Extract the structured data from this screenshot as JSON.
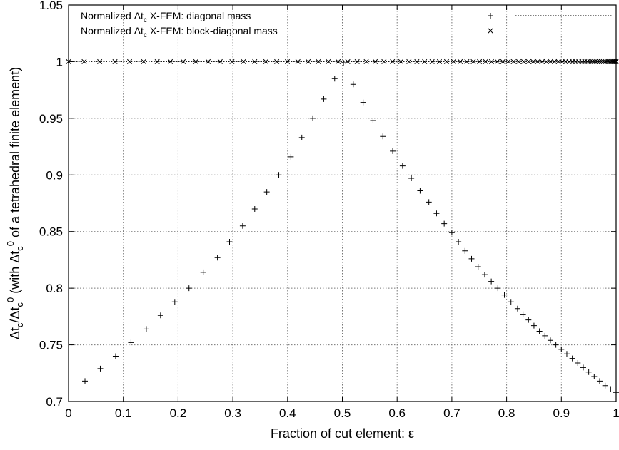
{
  "chart_data": {
    "type": "scatter",
    "title": "",
    "xlabel": "Fraction of cut element: ε",
    "ylabel": "Δt_c/Δt_c^0 (with Δt_c^0 of a tetrahedral finite element)",
    "xlim": [
      0,
      1
    ],
    "ylim": [
      0.7,
      1.05
    ],
    "grid": true,
    "legend_position": "top",
    "xticks": [
      "0",
      "0.1",
      "0.2",
      "0.3",
      "0.4",
      "0.5",
      "0.6",
      "0.7",
      "0.8",
      "0.9",
      "1"
    ],
    "yticks": [
      "0.7",
      "0.75",
      "0.8",
      "0.85",
      "0.9",
      "0.95",
      "1",
      "1.05"
    ],
    "series": [
      {
        "name": "Normalized Δt_c X-FEM: diagonal mass",
        "marker": "plus",
        "color": "#000000",
        "x": [
          0.03,
          0.058,
          0.086,
          0.114,
          0.142,
          0.168,
          0.194,
          0.22,
          0.246,
          0.272,
          0.294,
          0.318,
          0.34,
          0.362,
          0.384,
          0.406,
          0.426,
          0.446,
          0.466,
          0.486,
          0.502,
          0.52,
          0.538,
          0.556,
          0.574,
          0.592,
          0.61,
          0.626,
          0.642,
          0.658,
          0.672,
          0.686,
          0.7,
          0.712,
          0.724,
          0.736,
          0.748,
          0.76,
          0.772,
          0.784,
          0.796,
          0.808,
          0.82,
          0.83,
          0.84,
          0.85,
          0.86,
          0.87,
          0.88,
          0.89,
          0.9,
          0.91,
          0.92,
          0.93,
          0.94,
          0.95,
          0.96,
          0.97,
          0.98,
          0.99,
          1.0
        ],
        "y": [
          0.718,
          0.729,
          0.74,
          0.752,
          0.764,
          0.776,
          0.788,
          0.8,
          0.814,
          0.827,
          0.841,
          0.855,
          0.87,
          0.885,
          0.9,
          0.916,
          0.933,
          0.95,
          0.967,
          0.985,
          0.999,
          0.98,
          0.964,
          0.948,
          0.934,
          0.921,
          0.908,
          0.897,
          0.886,
          0.876,
          0.866,
          0.857,
          0.849,
          0.841,
          0.833,
          0.826,
          0.819,
          0.812,
          0.806,
          0.8,
          0.794,
          0.788,
          0.782,
          0.777,
          0.772,
          0.767,
          0.762,
          0.758,
          0.754,
          0.75,
          0.746,
          0.742,
          0.738,
          0.734,
          0.73,
          0.726,
          0.722,
          0.718,
          0.714,
          0.711,
          0.708
        ]
      },
      {
        "name": "Normalized Δt_c X-FEM: block-diagonal mass",
        "marker": "cross",
        "color": "#000000",
        "x": [
          0.0,
          0.0285,
          0.0569,
          0.0848,
          0.1115,
          0.1371,
          0.1619,
          0.1859,
          0.2094,
          0.2324,
          0.2549,
          0.2769,
          0.2984,
          0.3194,
          0.34,
          0.3603,
          0.3802,
          0.3997,
          0.4189,
          0.4377,
          0.4562,
          0.4744,
          0.4923,
          0.5099,
          0.527,
          0.5437,
          0.5601,
          0.576,
          0.5916,
          0.6068,
          0.6216,
          0.6361,
          0.6502,
          0.6639,
          0.6773,
          0.6903,
          0.703,
          0.7154,
          0.7274,
          0.7391,
          0.7505,
          0.7616,
          0.7724,
          0.7829,
          0.7931,
          0.803,
          0.8126,
          0.822,
          0.8311,
          0.8399,
          0.8485,
          0.8568,
          0.8648,
          0.8726,
          0.8801,
          0.8874,
          0.8945,
          0.9013,
          0.9079,
          0.9142,
          0.9203,
          0.9262,
          0.9319,
          0.9374,
          0.9426,
          0.9476,
          0.9524,
          0.957,
          0.9614,
          0.9656,
          0.9695,
          0.9733,
          0.9768,
          0.9801,
          0.9832,
          0.9861,
          0.9887,
          0.9912,
          0.9934,
          0.9954,
          0.9971,
          0.9986,
          1.0
        ],
        "y": [
          1.0,
          1.0,
          1.0,
          1.0,
          1.0,
          1.0,
          1.0,
          1.0,
          1.0,
          1.0,
          1.0,
          1.0,
          1.0,
          1.0,
          1.0,
          1.0,
          1.0,
          1.0,
          1.0,
          1.0,
          1.0,
          1.0,
          1.0,
          1.0,
          1.0,
          1.0,
          1.0,
          1.0,
          1.0,
          1.0,
          1.0,
          1.0,
          1.0,
          1.0,
          1.0,
          1.0,
          1.0,
          1.0,
          1.0,
          1.0,
          1.0,
          1.0,
          1.0,
          1.0,
          1.0,
          1.0,
          1.0,
          1.0,
          1.0,
          1.0,
          1.0,
          1.0,
          1.0,
          1.0,
          1.0,
          1.0,
          1.0,
          1.0,
          1.0,
          1.0,
          1.0,
          1.0,
          1.0,
          1.0,
          1.0,
          1.0,
          1.0,
          1.0,
          1.0,
          1.0,
          1.0,
          1.0,
          1.0,
          1.0,
          1.0,
          1.0,
          1.0,
          1.0,
          1.0,
          1.0,
          1.0,
          1.0,
          1.0
        ]
      },
      {
        "name": "",
        "style": "dotted-line",
        "color": "#000000",
        "x": [
          0,
          1
        ],
        "y": [
          1.0,
          1.0
        ]
      }
    ]
  }
}
